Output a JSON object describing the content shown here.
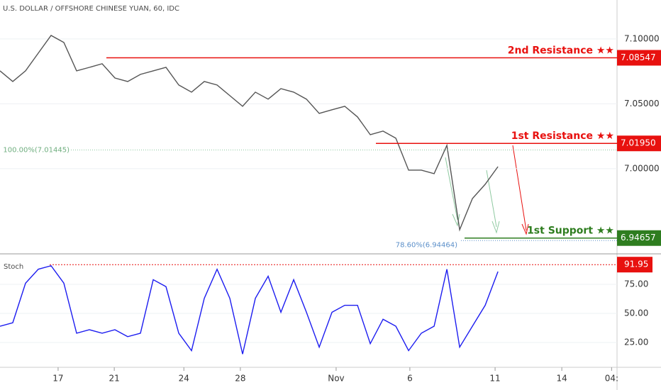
{
  "chart_data": [
    {
      "type": "line",
      "title": "U.S. DOLLAR / OFFSHORE CHINESE YUAN, 60, IDC",
      "color": "#555555",
      "x": [
        0,
        4,
        8,
        12,
        16,
        20,
        24,
        28,
        32,
        36,
        40,
        44,
        48,
        52,
        56,
        60,
        64,
        68,
        72,
        76,
        80,
        84,
        88,
        92,
        96,
        100,
        104,
        108,
        112,
        116,
        120,
        124,
        128,
        132,
        136,
        140,
        144,
        148,
        152,
        156
      ],
      "values": [
        7.0754,
        7.0672,
        7.0754,
        7.0891,
        7.1027,
        7.0973,
        7.0754,
        7.0781,
        7.0809,
        7.0699,
        7.0672,
        7.0727,
        7.0754,
        7.0781,
        7.0645,
        7.059,
        7.0672,
        7.0645,
        7.0563,
        7.0481,
        7.059,
        7.0536,
        7.0617,
        7.059,
        7.0536,
        7.0426,
        7.0454,
        7.0481,
        7.0399,
        7.0262,
        7.029,
        7.0235,
        6.9989,
        6.9989,
        6.9962,
        7.018,
        6.953,
        6.977,
        6.988,
        7.0016
      ],
      "xlim": [
        0,
        193.3
      ],
      "ylim": [
        6.9344,
        7.13
      ],
      "yticks": [
        {
          "value": 7.0,
          "label": "7.00000"
        },
        {
          "value": 7.05,
          "label": "7.05000"
        },
        {
          "value": 7.1,
          "label": "7.10000"
        }
      ],
      "xticks": [
        {
          "value": 18.2,
          "label": "17"
        },
        {
          "value": 35.8,
          "label": "21"
        },
        {
          "value": 57.6,
          "label": "24"
        },
        {
          "value": 75.3,
          "label": "28"
        },
        {
          "value": 105.3,
          "label": "Nov"
        },
        {
          "value": 128.4,
          "label": "6"
        },
        {
          "value": 155.1,
          "label": "11"
        },
        {
          "value": 176,
          "label": "14"
        },
        {
          "value": 191.6,
          "label": "04:"
        }
      ],
      "levels": [
        {
          "text": "2nd Resistance ★★",
          "value": 7.08547,
          "color": "#e8110f"
        },
        {
          "text": "1st Resistance ★★",
          "value": 7.0195,
          "value_label": "7.01950",
          "color": "#e8110f"
        },
        {
          "text": "1st Support ★★",
          "value": 6.94657,
          "color": "#2e7d1f"
        }
      ],
      "fib": [
        {
          "label": "100.00%(7.01445)",
          "value": 7.01445
        },
        {
          "label": "78.60%(6.94464)",
          "value": 6.94464
        }
      ]
    },
    {
      "type": "line",
      "title": "Stoch",
      "color": "#1c1cf0",
      "values": [
        39,
        42,
        76,
        88,
        91,
        76,
        33,
        36,
        33,
        36,
        30,
        33,
        79,
        73,
        33,
        18,
        63,
        88,
        63,
        15,
        63,
        82,
        51,
        79,
        51,
        21,
        51,
        57,
        57,
        24,
        45,
        39,
        18,
        33,
        39,
        88,
        21,
        39,
        57,
        86
      ],
      "ylim": [
        0,
        100
      ],
      "yticks": [
        {
          "value": 25,
          "label": "25.00"
        },
        {
          "value": 50,
          "label": "50.00"
        },
        {
          "value": 75,
          "label": "75.00"
        }
      ],
      "level": 91.95
    }
  ]
}
